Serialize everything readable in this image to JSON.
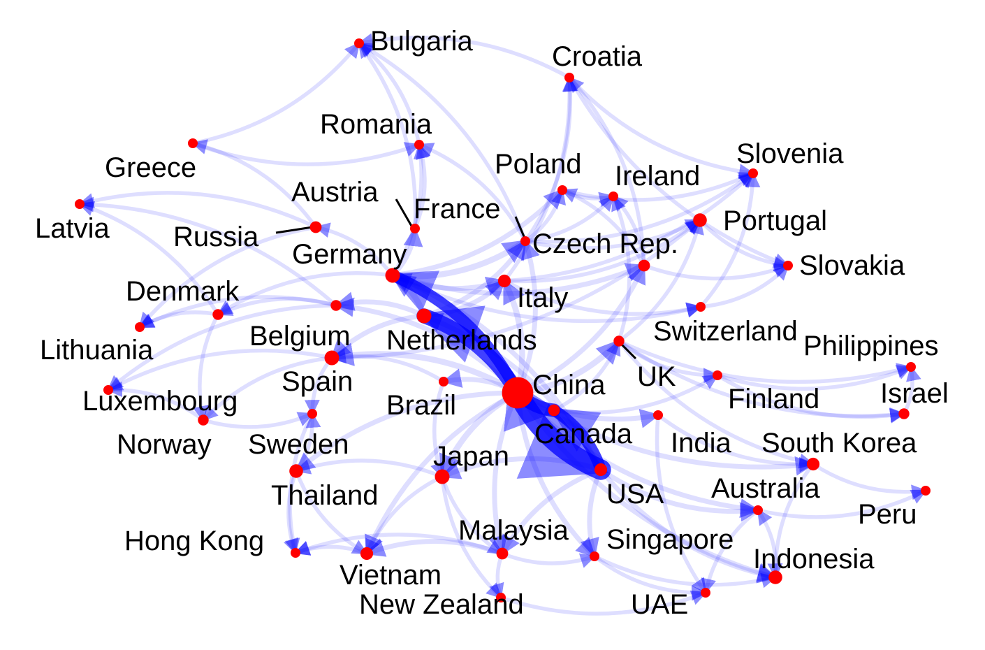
{
  "colors": {
    "node": "#ff0000",
    "edge": "#0000ff",
    "label": "#000000",
    "background": "#ffffff"
  },
  "nodes": [
    {
      "id": "Bulgaria",
      "label": "Bulgaria",
      "size": 1
    },
    {
      "id": "Croatia",
      "label": "Croatia",
      "size": 1
    },
    {
      "id": "Romania",
      "label": "Romania",
      "size": 1
    },
    {
      "id": "Greece",
      "label": "Greece",
      "size": 1
    },
    {
      "id": "Slovenia",
      "label": "Slovenia",
      "size": 1
    },
    {
      "id": "Poland",
      "label": "Poland",
      "size": 1
    },
    {
      "id": "Ireland",
      "label": "Ireland",
      "size": 1
    },
    {
      "id": "Austria",
      "label": "Austria",
      "size": 1
    },
    {
      "id": "Latvia",
      "label": "Latvia",
      "size": 1
    },
    {
      "id": "France",
      "label": "France",
      "size": 1
    },
    {
      "id": "Portugal",
      "label": "Portugal",
      "size": 1.4
    },
    {
      "id": "Russia",
      "label": "Russia",
      "size": 1.2
    },
    {
      "id": "CzechRep",
      "label": "Czech Rep.",
      "size": 1.2
    },
    {
      "id": "Germany",
      "label": "Germany",
      "size": 1.5
    },
    {
      "id": "Slovakia",
      "label": "Slovakia",
      "size": 1
    },
    {
      "id": "Italy",
      "label": "Italy",
      "size": 1.3
    },
    {
      "id": "Denmark",
      "label": "Denmark",
      "size": 1.1
    },
    {
      "id": "Lithuania",
      "label": "Lithuania",
      "size": 1
    },
    {
      "id": "Belgium",
      "label": "Belgium",
      "size": 1.1
    },
    {
      "id": "Netherlands",
      "label": "Netherlands",
      "size": 1.5
    },
    {
      "id": "Switzerland",
      "label": "Switzerland",
      "size": 1
    },
    {
      "id": "Philippines",
      "label": "Philippines",
      "size": 1
    },
    {
      "id": "UK",
      "label": "UK",
      "size": 1.1
    },
    {
      "id": "Spain",
      "label": "Spain",
      "size": 1.5
    },
    {
      "id": "Luxembourg",
      "label": "Luxembourg",
      "size": 1
    },
    {
      "id": "China",
      "label": "China",
      "size": 3.2
    },
    {
      "id": "Brazil",
      "label": "Brazil",
      "size": 1
    },
    {
      "id": "Canada",
      "label": "Canada",
      "size": 1.2
    },
    {
      "id": "Finland",
      "label": "Finland",
      "size": 1
    },
    {
      "id": "Israel",
      "label": "Israel",
      "size": 1.1
    },
    {
      "id": "Norway",
      "label": "Norway",
      "size": 1.1
    },
    {
      "id": "Sweden",
      "label": "Sweden",
      "size": 1
    },
    {
      "id": "India",
      "label": "India",
      "size": 1
    },
    {
      "id": "SouthKorea",
      "label": "South Korea",
      "size": 1.3
    },
    {
      "id": "Japan",
      "label": "Japan",
      "size": 1.5
    },
    {
      "id": "Thailand",
      "label": "Thailand",
      "size": 1.4
    },
    {
      "id": "USA",
      "label": "USA",
      "size": 1.3
    },
    {
      "id": "Australia",
      "label": "Australia",
      "size": 1
    },
    {
      "id": "Peru",
      "label": "Peru",
      "size": 1
    },
    {
      "id": "HongKong",
      "label": "Hong Kong",
      "size": 1
    },
    {
      "id": "Malaysia",
      "label": "Malaysia",
      "size": 1.2
    },
    {
      "id": "Singapore",
      "label": "Singapore",
      "size": 1
    },
    {
      "id": "Vietnam",
      "label": "Vietnam",
      "size": 1.3
    },
    {
      "id": "Indonesia",
      "label": "Indonesia",
      "size": 1.4
    },
    {
      "id": "NewZealand",
      "label": "New Zealand",
      "size": 1
    },
    {
      "id": "UAE",
      "label": "UAE",
      "size": 1
    }
  ],
  "edges": [
    {
      "from": "China",
      "to": "USA",
      "weight": 9
    },
    {
      "from": "China",
      "to": "Netherlands",
      "weight": 6
    },
    {
      "from": "China",
      "to": "Canada",
      "weight": 5
    },
    {
      "from": "China",
      "to": "Germany",
      "weight": 4
    },
    {
      "from": "China",
      "to": "Spain",
      "weight": 3
    },
    {
      "from": "China",
      "to": "Japan",
      "weight": 3
    },
    {
      "from": "China",
      "to": "Italy",
      "weight": 3
    },
    {
      "from": "China",
      "to": "UK",
      "weight": 3
    },
    {
      "from": "China",
      "to": "Brazil",
      "weight": 2
    },
    {
      "from": "China",
      "to": "Malaysia",
      "weight": 2
    },
    {
      "from": "China",
      "to": "Thailand",
      "weight": 2
    },
    {
      "from": "China",
      "to": "Vietnam",
      "weight": 2
    },
    {
      "from": "China",
      "to": "Indonesia",
      "weight": 2
    },
    {
      "from": "China",
      "to": "Singapore",
      "weight": 2
    },
    {
      "from": "China",
      "to": "Belgium",
      "weight": 2
    },
    {
      "from": "China",
      "to": "France",
      "weight": 2
    },
    {
      "from": "China",
      "to": "CzechRep",
      "weight": 2
    },
    {
      "from": "China",
      "to": "SouthKorea",
      "weight": 2
    },
    {
      "from": "China",
      "to": "Australia",
      "weight": 2
    },
    {
      "from": "China",
      "to": "India",
      "weight": 2
    },
    {
      "from": "USA",
      "to": "Canada",
      "weight": 4
    },
    {
      "from": "USA",
      "to": "Japan",
      "weight": 2
    },
    {
      "from": "USA",
      "to": "Malaysia",
      "weight": 2
    },
    {
      "from": "USA",
      "to": "Singapore",
      "weight": 2
    },
    {
      "from": "USA",
      "to": "Indonesia",
      "weight": 2
    },
    {
      "from": "USA",
      "to": "Australia",
      "weight": 2
    },
    {
      "from": "USA",
      "to": "Germany",
      "weight": 2
    },
    {
      "from": "USA",
      "to": "Netherlands",
      "weight": 2
    },
    {
      "from": "Netherlands",
      "to": "Germany",
      "weight": 3
    },
    {
      "from": "Netherlands",
      "to": "Belgium",
      "weight": 2
    },
    {
      "from": "Netherlands",
      "to": "France",
      "weight": 2
    },
    {
      "from": "Netherlands",
      "to": "Italy",
      "weight": 2
    },
    {
      "from": "Netherlands",
      "to": "Spain",
      "weight": 2
    },
    {
      "from": "Germany",
      "to": "France",
      "weight": 3
    },
    {
      "from": "Germany",
      "to": "Poland",
      "weight": 2
    },
    {
      "from": "Germany",
      "to": "CzechRep",
      "weight": 2
    },
    {
      "from": "Germany",
      "to": "Austria",
      "weight": 2
    },
    {
      "from": "Germany",
      "to": "Italy",
      "weight": 2
    },
    {
      "from": "Germany",
      "to": "Romania",
      "weight": 1
    },
    {
      "from": "Germany",
      "to": "Russia",
      "weight": 1
    },
    {
      "from": "Germany",
      "to": "Denmark",
      "weight": 1
    },
    {
      "from": "Germany",
      "to": "Switzerland",
      "weight": 1
    },
    {
      "from": "France",
      "to": "Poland",
      "weight": 1
    },
    {
      "from": "France",
      "to": "Ireland",
      "weight": 1
    },
    {
      "from": "France",
      "to": "Portugal",
      "weight": 1
    },
    {
      "from": "France",
      "to": "Slovenia",
      "weight": 1
    },
    {
      "from": "France",
      "to": "Romania",
      "weight": 1
    },
    {
      "from": "France",
      "to": "Croatia",
      "weight": 1
    },
    {
      "from": "France",
      "to": "Bulgaria",
      "weight": 1
    },
    {
      "from": "CzechRep",
      "to": "Poland",
      "weight": 1
    },
    {
      "from": "CzechRep",
      "to": "Slovakia",
      "weight": 1
    },
    {
      "from": "CzechRep",
      "to": "Croatia",
      "weight": 1
    },
    {
      "from": "CzechRep",
      "to": "Ireland",
      "weight": 1
    },
    {
      "from": "Italy",
      "to": "Portugal",
      "weight": 1
    },
    {
      "from": "Italy",
      "to": "Slovenia",
      "weight": 1
    },
    {
      "from": "Italy",
      "to": "Croatia",
      "weight": 1
    },
    {
      "from": "Italy",
      "to": "Switzerland",
      "weight": 1
    },
    {
      "from": "Spain",
      "to": "Portugal",
      "weight": 1
    },
    {
      "from": "Spain",
      "to": "Luxembourg",
      "weight": 1
    },
    {
      "from": "Spain",
      "to": "Norway",
      "weight": 1
    },
    {
      "from": "Spain",
      "to": "Sweden",
      "weight": 1
    },
    {
      "from": "Belgium",
      "to": "Luxembourg",
      "weight": 1
    },
    {
      "from": "Belgium",
      "to": "Lithuania",
      "weight": 1
    },
    {
      "from": "Belgium",
      "to": "Latvia",
      "weight": 1
    },
    {
      "from": "Belgium",
      "to": "Denmark",
      "weight": 1
    },
    {
      "from": "Russia",
      "to": "Latvia",
      "weight": 1
    },
    {
      "from": "Russia",
      "to": "Lithuania",
      "weight": 1
    },
    {
      "from": "Russia",
      "to": "Greece",
      "weight": 1
    },
    {
      "from": "Greece",
      "to": "Bulgaria",
      "weight": 1
    },
    {
      "from": "Greece",
      "to": "Romania",
      "weight": 1
    },
    {
      "from": "Denmark",
      "to": "Lithuania",
      "weight": 1
    },
    {
      "from": "Denmark",
      "to": "Latvia",
      "weight": 1
    },
    {
      "from": "Denmark",
      "to": "Norway",
      "weight": 1
    },
    {
      "from": "Austria",
      "to": "Romania",
      "weight": 1
    },
    {
      "from": "Austria",
      "to": "Bulgaria",
      "weight": 1
    },
    {
      "from": "Croatia",
      "to": "Slovenia",
      "weight": 1
    },
    {
      "from": "Croatia",
      "to": "Slovakia",
      "weight": 1
    },
    {
      "from": "Croatia",
      "to": "Bulgaria",
      "weight": 1
    },
    {
      "from": "UK",
      "to": "Ireland",
      "weight": 1
    },
    {
      "from": "UK",
      "to": "Finland",
      "weight": 1
    },
    {
      "from": "UK",
      "to": "Philippines",
      "weight": 1
    },
    {
      "from": "UK",
      "to": "Israel",
      "weight": 1
    },
    {
      "from": "UK",
      "to": "Portugal",
      "weight": 1
    },
    {
      "from": "UK",
      "to": "SouthKorea",
      "weight": 1
    },
    {
      "from": "Switzerland",
      "to": "Slovakia",
      "weight": 1
    },
    {
      "from": "Switzerland",
      "to": "Slovenia",
      "weight": 1
    },
    {
      "from": "Finland",
      "to": "Philippines",
      "weight": 1
    },
    {
      "from": "Finland",
      "to": "Israel",
      "weight": 1
    },
    {
      "from": "SouthKorea",
      "to": "Peru",
      "weight": 1
    },
    {
      "from": "SouthKorea",
      "to": "Indonesia",
      "weight": 1
    },
    {
      "from": "Australia",
      "to": "Peru",
      "weight": 1
    },
    {
      "from": "Australia",
      "to": "UAE",
      "weight": 1
    },
    {
      "from": "India",
      "to": "UAE",
      "weight": 1
    },
    {
      "from": "India",
      "to": "SouthKorea",
      "weight": 1
    },
    {
      "from": "Japan",
      "to": "Malaysia",
      "weight": 1
    },
    {
      "from": "Japan",
      "to": "Vietnam",
      "weight": 1
    },
    {
      "from": "Japan",
      "to": "Thailand",
      "weight": 1
    },
    {
      "from": "Japan",
      "to": "NewZealand",
      "weight": 1
    },
    {
      "from": "Thailand",
      "to": "HongKong",
      "weight": 1
    },
    {
      "from": "Thailand",
      "to": "Vietnam",
      "weight": 1
    },
    {
      "from": "Thailand",
      "to": "Sweden",
      "weight": 1
    },
    {
      "from": "Malaysia",
      "to": "Vietnam",
      "weight": 2
    },
    {
      "from": "Malaysia",
      "to": "Singapore",
      "weight": 1
    },
    {
      "from": "Malaysia",
      "to": "NewZealand",
      "weight": 1
    },
    {
      "from": "Malaysia",
      "to": "HongKong",
      "weight": 1
    },
    {
      "from": "Singapore",
      "to": "Indonesia",
      "weight": 1
    },
    {
      "from": "Singapore",
      "to": "UAE",
      "weight": 1
    },
    {
      "from": "Vietnam",
      "to": "HongKong",
      "weight": 1
    },
    {
      "from": "Canada",
      "to": "UK",
      "weight": 1
    },
    {
      "from": "Canada",
      "to": "Finland",
      "weight": 1
    },
    {
      "from": "Brazil",
      "to": "Spain",
      "weight": 1
    },
    {
      "from": "Brazil",
      "to": "Japan",
      "weight": 1
    },
    {
      "from": "Norway",
      "to": "Sweden",
      "weight": 1
    },
    {
      "from": "Norway",
      "to": "Luxembourg",
      "weight": 1
    },
    {
      "from": "Sweden",
      "to": "HongKong",
      "weight": 1
    },
    {
      "from": "Poland",
      "to": "Ireland",
      "weight": 1
    },
    {
      "from": "Poland",
      "to": "Slovenia",
      "weight": 1
    },
    {
      "from": "Portugal",
      "to": "Slovakia",
      "weight": 1
    },
    {
      "from": "Romania",
      "to": "Bulgaria",
      "weight": 1
    },
    {
      "from": "Israel",
      "to": "Philippines",
      "weight": 1
    },
    {
      "from": "Indonesia",
      "to": "Australia",
      "weight": 1
    },
    {
      "from": "NewZealand",
      "to": "UAE",
      "weight": 1
    }
  ]
}
